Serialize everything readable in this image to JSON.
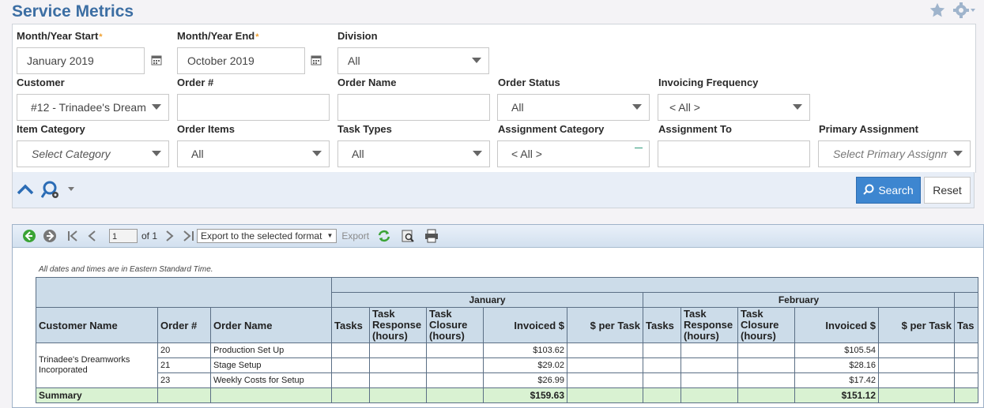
{
  "page": {
    "title": "Service Metrics"
  },
  "filters": {
    "month_start": {
      "label": "Month/Year Start",
      "value": "January 2019"
    },
    "month_end": {
      "label": "Month/Year End",
      "value": "October 2019"
    },
    "division": {
      "label": "Division",
      "value": "All"
    },
    "customer": {
      "label": "Customer",
      "value": "#12 - Trinadee's Dream"
    },
    "order_number": {
      "label": "Order #",
      "value": ""
    },
    "order_name": {
      "label": "Order Name",
      "value": ""
    },
    "order_status": {
      "label": "Order Status",
      "value": "All"
    },
    "invoicing_frequency": {
      "label": "Invoicing Frequency",
      "value": "< All >"
    },
    "item_category": {
      "label": "Item Category",
      "placeholder": "Select Category"
    },
    "order_items": {
      "label": "Order Items",
      "value": "All"
    },
    "task_types": {
      "label": "Task Types",
      "value": "All"
    },
    "assignment_category": {
      "label": "Assignment Category",
      "value": "< All >"
    },
    "assignment_to": {
      "label": "Assignment To",
      "value": ""
    },
    "primary_assignment": {
      "label": "Primary Assignment",
      "placeholder": "Select Primary Assignm"
    },
    "required_mark": "*"
  },
  "actions": {
    "search_label": "Search",
    "reset_label": "Reset"
  },
  "toolbar": {
    "page_value": "1",
    "page_of": "of 1",
    "export_format": "Export to the selected format",
    "export_label": "Export"
  },
  "report": {
    "timezone_note": "All dates and times are in Eastern Standard Time.",
    "months": [
      "January",
      "February"
    ],
    "columns": {
      "customer_name": "Customer Name",
      "order_num": "Order #",
      "order_name": "Order Name",
      "tasks": "Tasks",
      "task_response": "Task Response (hours)",
      "task_closure": "Task Closure (hours)",
      "invoiced": "Invoiced $",
      "per_task": "$ per Task",
      "next_partial": "Tas"
    },
    "customer": "Trinadee's Dreamworks Incorporated",
    "rows": [
      {
        "order_num": "20",
        "order_name": "Production Set Up",
        "jan_invoiced": "$103.62",
        "feb_invoiced": "$105.54"
      },
      {
        "order_num": "21",
        "order_name": "Stage Setup",
        "jan_invoiced": "$29.02",
        "feb_invoiced": "$28.16"
      },
      {
        "order_num": "23",
        "order_name": "Weekly Costs for Setup",
        "jan_invoiced": "$26.99",
        "feb_invoiced": "$17.42"
      }
    ],
    "summary": {
      "label": "Summary",
      "jan_invoiced": "$159.63",
      "feb_invoiced": "$151.12"
    }
  },
  "colors": {
    "title": "#3c6ea3",
    "search_button": "#3d86d0",
    "header": "#ccdce9",
    "summary": "#d9f2d2"
  }
}
